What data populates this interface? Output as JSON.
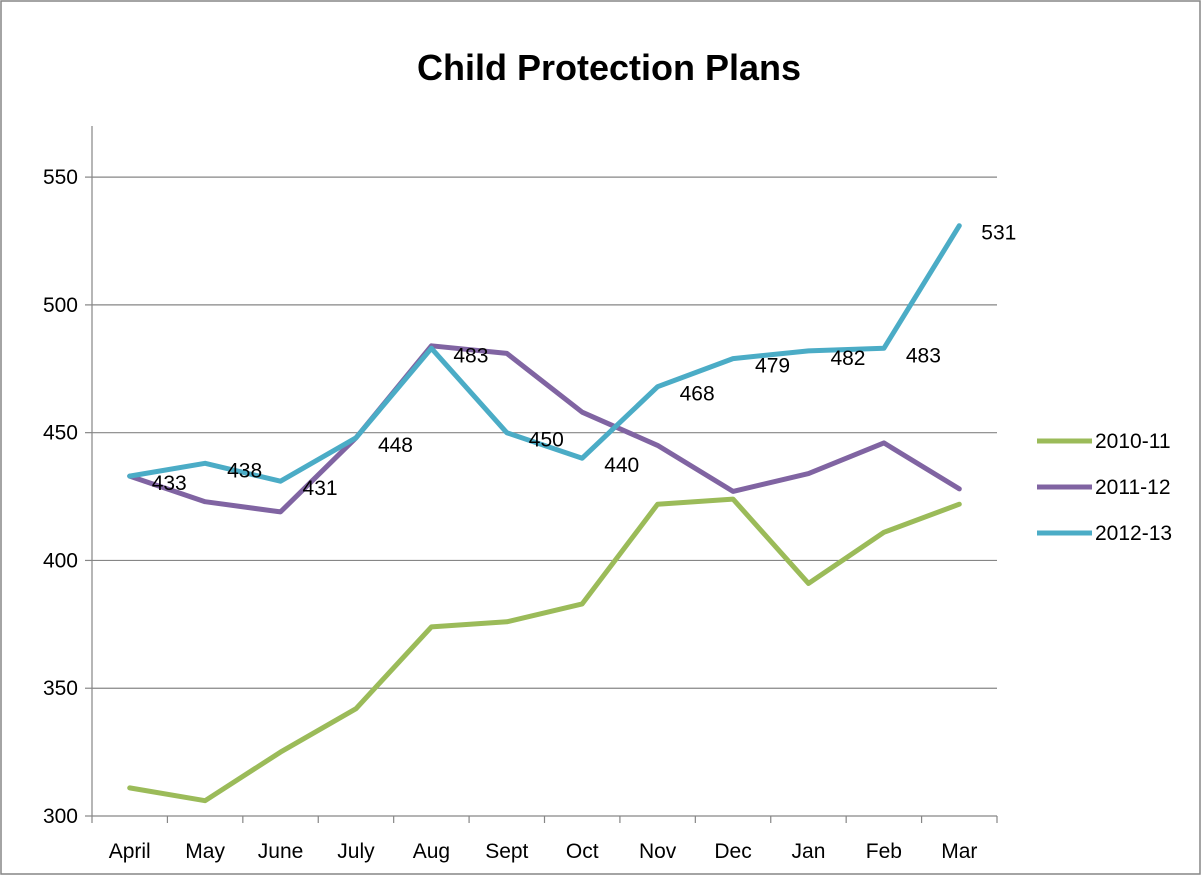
{
  "chart_data": {
    "type": "line",
    "title": "Child Protection Plans",
    "xlabel": "",
    "ylabel": "",
    "categories": [
      "April",
      "May",
      "June",
      "July",
      "Aug",
      "Sept",
      "Oct",
      "Nov",
      "Dec",
      "Jan",
      "Feb",
      "Mar"
    ],
    "ylim": [
      300,
      550
    ],
    "yticks": [
      "300",
      "350",
      "400",
      "450",
      "500",
      "550"
    ],
    "grid": true,
    "legend_position": "right",
    "series": [
      {
        "name": "2010-11",
        "color": "#9BBB59",
        "values": [
          311,
          306,
          325,
          342,
          374,
          376,
          383,
          422,
          424,
          391,
          411,
          422
        ],
        "labels": []
      },
      {
        "name": "2011-12",
        "color": "#8064A2",
        "values": [
          433,
          423,
          419,
          448,
          484,
          481,
          458,
          445,
          427,
          434,
          446,
          428
        ],
        "labels": []
      },
      {
        "name": "2012-13",
        "color": "#4BACC6",
        "values": [
          433,
          438,
          431,
          448,
          483,
          450,
          440,
          468,
          479,
          482,
          483,
          531
        ],
        "labels": [
          "433",
          "438",
          "431",
          "448",
          "483",
          "450",
          "440",
          "468",
          "479",
          "482",
          "483",
          "531"
        ]
      }
    ]
  }
}
